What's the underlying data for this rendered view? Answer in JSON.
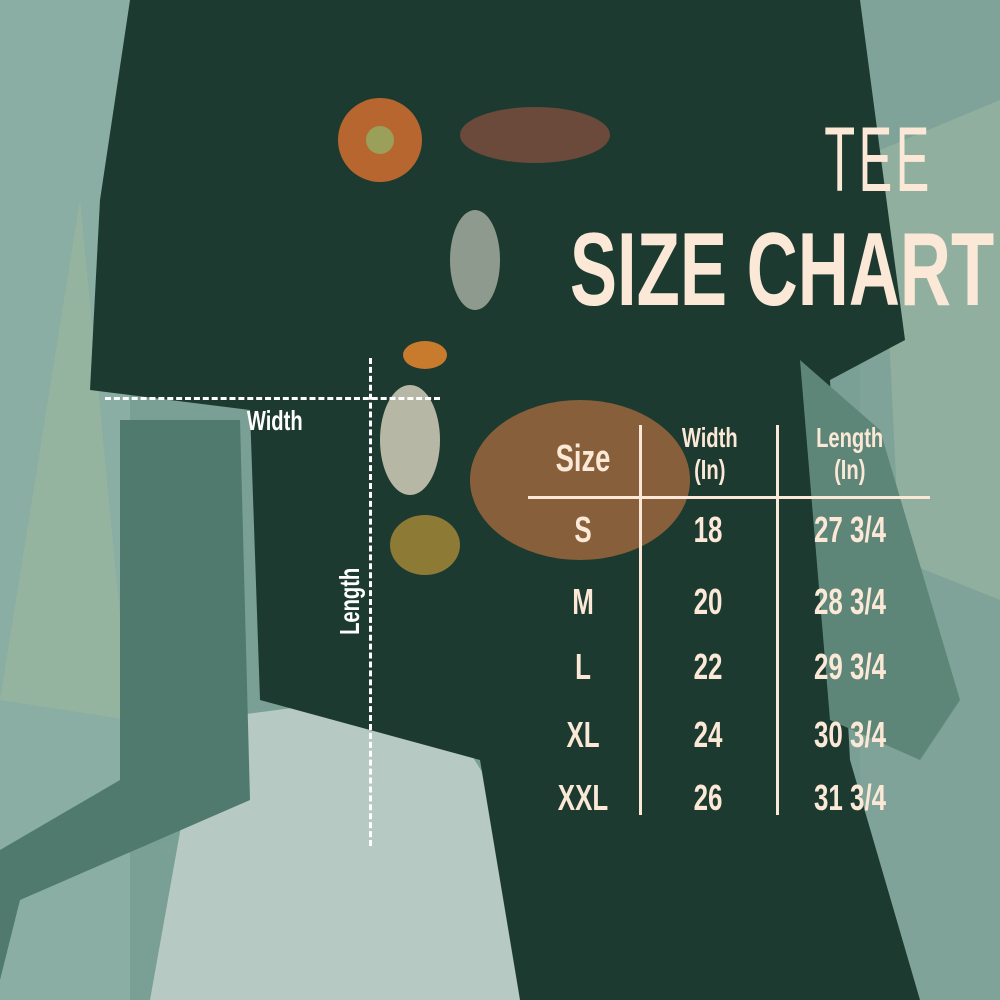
{
  "title": {
    "line1": "TEE",
    "line2": "SIZE CHART"
  },
  "measure_labels": {
    "width": "Width",
    "length": "Length"
  },
  "table": {
    "headers": [
      {
        "label": "Size",
        "unit": ""
      },
      {
        "label": "Width",
        "unit": "(In)"
      },
      {
        "label": "Length",
        "unit": "(In)"
      }
    ],
    "rows": [
      {
        "size": "S",
        "width": "18",
        "length": "27 3/4"
      },
      {
        "size": "M",
        "width": "20",
        "length": "28 3/4"
      },
      {
        "size": "L",
        "width": "22",
        "length": "29 3/4"
      },
      {
        "size": "XL",
        "width": "24",
        "length": "30 3/4"
      },
      {
        "size": "XXL",
        "width": "26",
        "length": "31 3/4"
      }
    ]
  },
  "colors": {
    "text": "#fbe8d6",
    "shirt": "#1d3a30",
    "background": "#6f958b"
  }
}
